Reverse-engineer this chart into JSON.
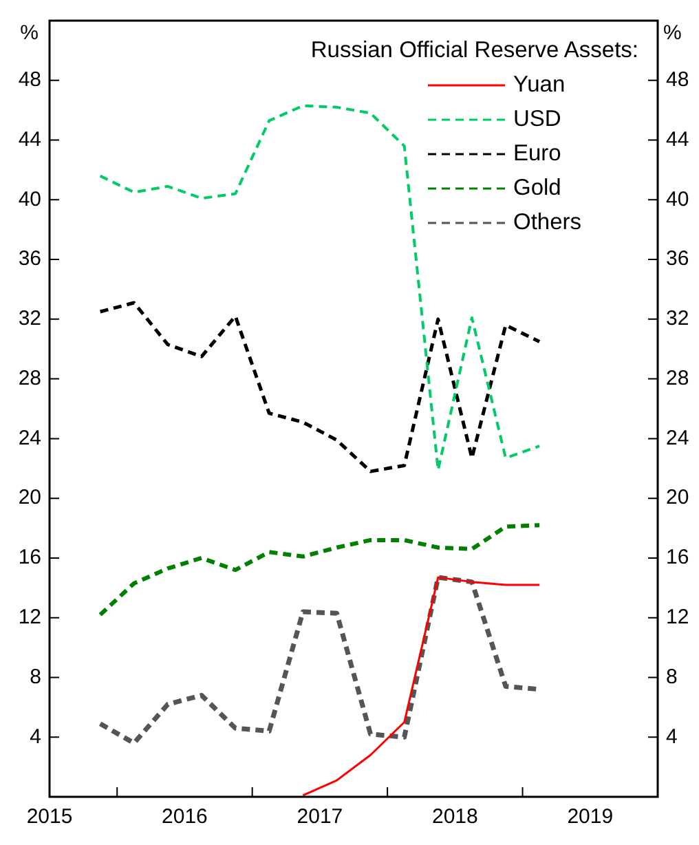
{
  "chart_data": {
    "type": "line",
    "legend_title": "Russian Official Reserve Assets:",
    "ylabel": "%",
    "y2label": "%",
    "x": [
      2015.875,
      2016.125,
      2016.375,
      2016.625,
      2016.875,
      2017.125,
      2017.375,
      2017.625,
      2017.875,
      2018.125,
      2018.375,
      2018.625,
      2018.875,
      2019.125
    ],
    "xlim": [
      2015.5,
      2020
    ],
    "xticks": [
      {
        "value": 2015.5,
        "label": "2015"
      },
      {
        "value": 2016,
        "label": null
      },
      {
        "value": 2016.5,
        "label": "2016"
      },
      {
        "value": 2017,
        "label": null
      },
      {
        "value": 2017.5,
        "label": "2017"
      },
      {
        "value": 2018,
        "label": null
      },
      {
        "value": 2018.5,
        "label": "2018"
      },
      {
        "value": 2019,
        "label": null
      },
      {
        "value": 2019.5,
        "label": "2019"
      }
    ],
    "ylim": [
      0,
      52
    ],
    "yticks": [
      4,
      8,
      12,
      16,
      20,
      24,
      28,
      32,
      36,
      40,
      44,
      48
    ],
    "y2lim": [
      0,
      52
    ],
    "y2ticks": [
      4,
      8,
      12,
      16,
      20,
      24,
      28,
      32,
      36,
      40,
      44,
      48
    ],
    "grid": false,
    "legend": "top right",
    "marker": "none",
    "series": [
      {
        "name": "Yuan",
        "color": "#ff0000",
        "line_style": "solid",
        "values": [
          null,
          null,
          null,
          null,
          null,
          null,
          0.1,
          1.1,
          2.8,
          5.0,
          14.7,
          14.4,
          14.2,
          14.2
        ]
      },
      {
        "name": "USD",
        "color": "#00cc66",
        "line_style": "dashed",
        "values": [
          41.6,
          40.5,
          40.9,
          40.1,
          40.4,
          45.3,
          46.3,
          46.2,
          45.8,
          43.6,
          21.9,
          32.1,
          22.7,
          23.5
        ]
      },
      {
        "name": "Euro",
        "color": "#000000",
        "line_style": "dashed",
        "values": [
          32.5,
          33.1,
          30.3,
          29.5,
          32.2,
          25.7,
          25.1,
          23.9,
          21.8,
          22.2,
          32.0,
          22.7,
          31.6,
          30.5
        ]
      },
      {
        "name": "Gold",
        "color": "#008000",
        "line_style": "dashed",
        "values": [
          12.2,
          14.3,
          15.3,
          16.0,
          15.2,
          16.4,
          16.1,
          16.7,
          17.2,
          17.2,
          16.7,
          16.6,
          18.1,
          18.2
        ]
      },
      {
        "name": "Others",
        "color": "#555555",
        "line_style": "dashed",
        "values": [
          4.9,
          3.6,
          6.2,
          6.8,
          4.6,
          4.4,
          12.4,
          12.3,
          4.2,
          4.0,
          14.7,
          14.4,
          7.4,
          7.2
        ]
      }
    ]
  }
}
